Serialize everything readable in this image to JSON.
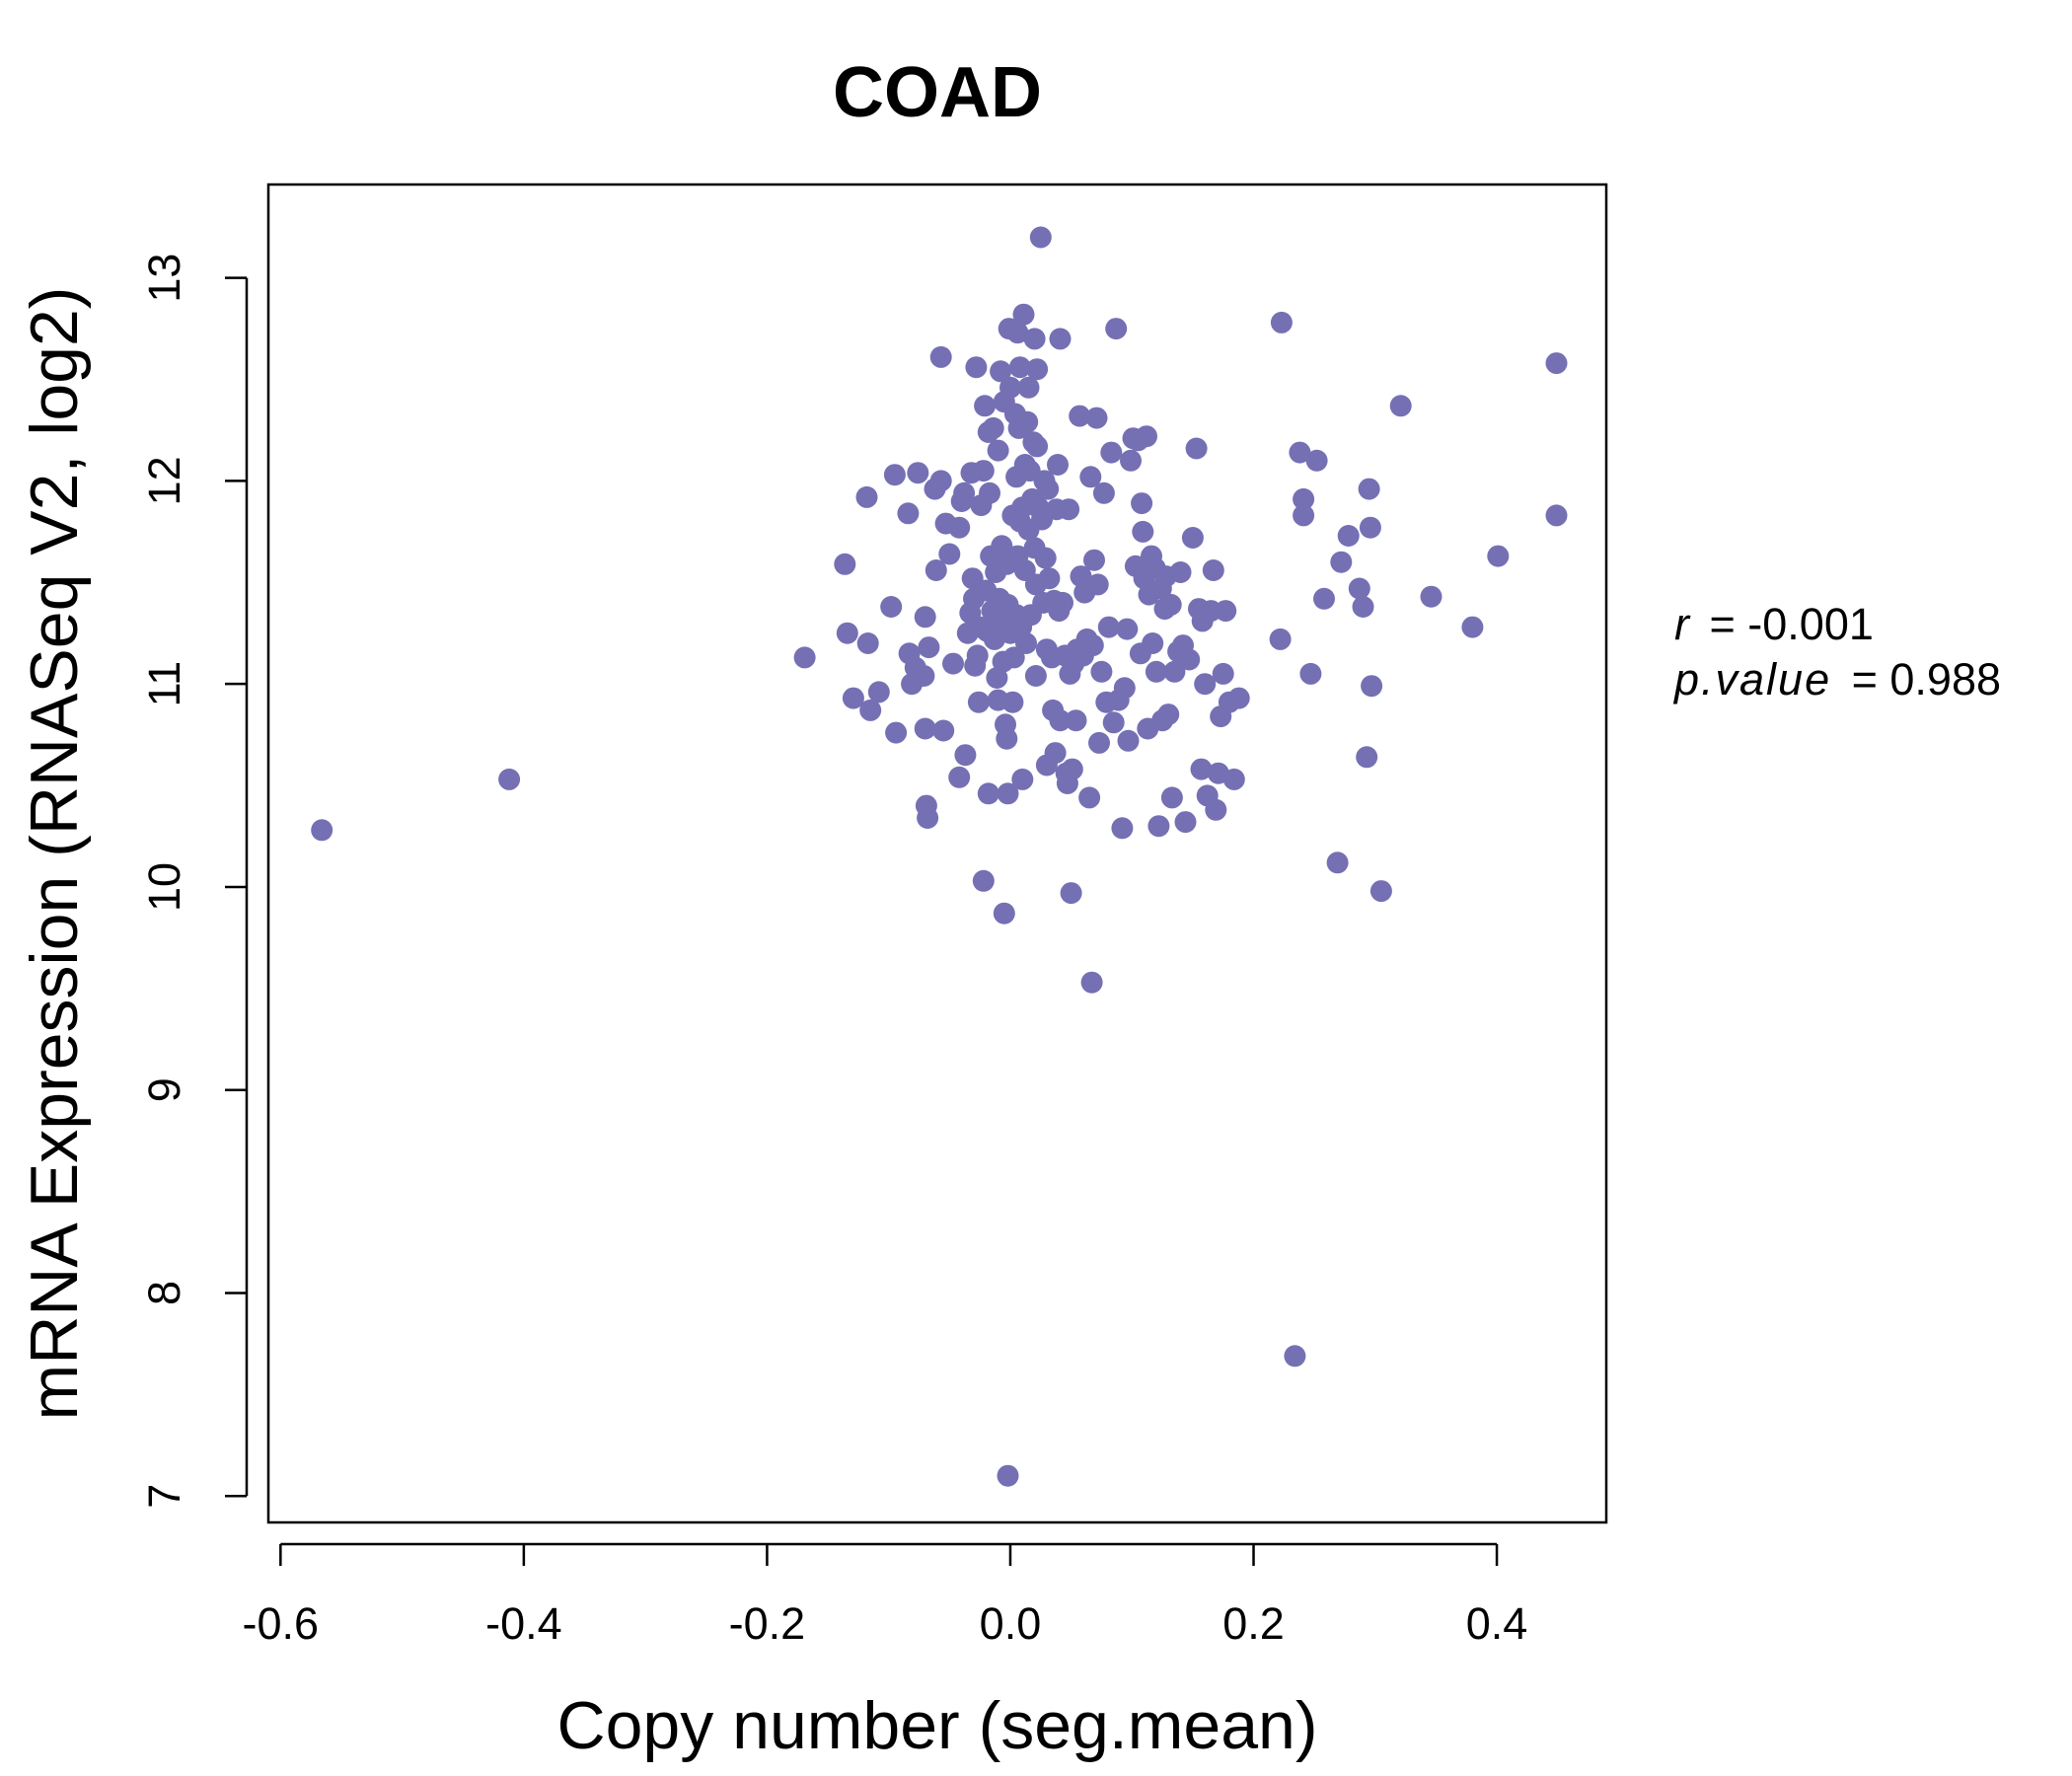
{
  "colors": {
    "accent": "#7570B3",
    "axis": "#000000",
    "background": "#FFFFFF"
  },
  "stats": {
    "r_label": "r",
    "r_value": "= -0.001",
    "p_label": "p.value",
    "p_value": "= 0.988"
  },
  "chart_data": {
    "type": "scatter",
    "title": "COAD",
    "xlabel": "Copy number (seg.mean)",
    "ylabel": "mRNA Expression (RNASeq V2, log2)",
    "xlim": [
      -0.61,
      0.49
    ],
    "ylim": [
      6.87,
      13.46
    ],
    "x_ticks": [
      -0.6,
      -0.4,
      -0.2,
      0.0,
      0.2,
      0.4
    ],
    "x_tick_labels": [
      "-0.6",
      "-0.4",
      "-0.2",
      "0.0",
      "0.2",
      "0.4"
    ],
    "y_ticks": [
      7,
      8,
      9,
      10,
      11,
      12,
      13
    ],
    "y_tick_labels": [
      "7",
      "8",
      "9",
      "10",
      "11",
      "12",
      "13"
    ],
    "grid": false,
    "points": [
      [
        -0.566,
        10.28
      ],
      [
        -0.412,
        10.53
      ],
      [
        -0.169,
        11.13
      ],
      [
        -0.136,
        11.59
      ],
      [
        -0.134,
        11.25
      ],
      [
        -0.129,
        10.93
      ],
      [
        -0.118,
        11.92
      ],
      [
        -0.117,
        11.2
      ],
      [
        -0.115,
        10.87
      ],
      [
        -0.108,
        10.96
      ],
      [
        -0.098,
        11.38
      ],
      [
        -0.095,
        12.03
      ],
      [
        -0.094,
        10.76
      ],
      [
        -0.084,
        11.84
      ],
      [
        -0.083,
        11.15
      ],
      [
        -0.081,
        11.0
      ],
      [
        -0.078,
        11.08
      ],
      [
        -0.076,
        12.04
      ],
      [
        -0.071,
        11.04
      ],
      [
        -0.07,
        11.33
      ],
      [
        -0.07,
        10.78
      ],
      [
        -0.069,
        10.4
      ],
      [
        -0.068,
        10.34
      ],
      [
        -0.067,
        11.18
      ],
      [
        -0.062,
        11.96
      ],
      [
        -0.061,
        11.56
      ],
      [
        -0.057,
        12.61
      ],
      [
        -0.057,
        12.0
      ],
      [
        -0.055,
        10.77
      ],
      [
        -0.053,
        11.79
      ],
      [
        -0.05,
        11.64
      ],
      [
        -0.047,
        11.1
      ],
      [
        -0.042,
        11.77
      ],
      [
        -0.042,
        10.54
      ],
      [
        -0.04,
        11.9
      ],
      [
        -0.038,
        11.94
      ],
      [
        -0.037,
        10.65
      ],
      [
        -0.035,
        11.25
      ],
      [
        -0.033,
        11.35
      ],
      [
        -0.032,
        12.04
      ],
      [
        -0.031,
        11.52
      ],
      [
        -0.03,
        11.42
      ],
      [
        -0.029,
        11.09
      ],
      [
        -0.028,
        12.56
      ],
      [
        -0.027,
        11.14
      ],
      [
        -0.026,
        10.91
      ],
      [
        -0.025,
        11.28
      ],
      [
        -0.024,
        11.88
      ],
      [
        -0.022,
        12.05
      ],
      [
        -0.022,
        10.03
      ],
      [
        -0.021,
        12.37
      ],
      [
        -0.02,
        11.46
      ],
      [
        -0.019,
        11.26
      ],
      [
        -0.018,
        10.46
      ],
      [
        -0.018,
        12.24
      ],
      [
        -0.017,
        11.94
      ],
      [
        -0.016,
        11.63
      ],
      [
        -0.015,
        11.36
      ],
      [
        -0.014,
        12.26
      ],
      [
        -0.013,
        11.22
      ],
      [
        -0.012,
        11.55
      ],
      [
        -0.011,
        11.03
      ],
      [
        -0.01,
        10.92
      ],
      [
        -0.01,
        12.15
      ],
      [
        -0.009,
        11.42
      ],
      [
        -0.008,
        12.54
      ],
      [
        -0.007,
        11.68
      ],
      [
        -0.007,
        11.31
      ],
      [
        -0.006,
        11.11
      ],
      [
        -0.005,
        9.87
      ],
      [
        -0.005,
        12.39
      ],
      [
        -0.004,
        10.8
      ],
      [
        -0.003,
        10.73
      ],
      [
        -0.003,
        11.59
      ],
      [
        -0.002,
        11.39
      ],
      [
        -0.002,
        10.46
      ],
      [
        -0.002,
        7.1
      ],
      [
        -0.001,
        12.75
      ],
      [
        0.0,
        11.25
      ],
      [
        0.0,
        12.46
      ],
      [
        0.002,
        11.83
      ],
      [
        0.002,
        10.91
      ],
      [
        0.003,
        11.13
      ],
      [
        0.004,
        12.33
      ],
      [
        0.005,
        11.34
      ],
      [
        0.005,
        12.02
      ],
      [
        0.006,
        11.63
      ],
      [
        0.006,
        12.73
      ],
      [
        0.007,
        12.26
      ],
      [
        0.008,
        12.56
      ],
      [
        0.008,
        11.8
      ],
      [
        0.009,
        11.28
      ],
      [
        0.01,
        11.87
      ],
      [
        0.01,
        10.53
      ],
      [
        0.011,
        12.82
      ],
      [
        0.012,
        11.56
      ],
      [
        0.012,
        12.08
      ],
      [
        0.013,
        11.2
      ],
      [
        0.014,
        12.29
      ],
      [
        0.015,
        11.76
      ],
      [
        0.015,
        12.46
      ],
      [
        0.016,
        12.05
      ],
      [
        0.017,
        11.34
      ],
      [
        0.018,
        11.91
      ],
      [
        0.019,
        12.19
      ],
      [
        0.02,
        11.67
      ],
      [
        0.02,
        12.7
      ],
      [
        0.021,
        11.49
      ],
      [
        0.021,
        11.04
      ],
      [
        0.022,
        12.55
      ],
      [
        0.022,
        12.17
      ],
      [
        0.023,
        11.87
      ],
      [
        0.025,
        13.2
      ],
      [
        0.026,
        11.81
      ],
      [
        0.027,
        11.4
      ],
      [
        0.028,
        12.0
      ],
      [
        0.029,
        11.62
      ],
      [
        0.03,
        11.17
      ],
      [
        0.03,
        10.6
      ],
      [
        0.031,
        11.96
      ],
      [
        0.032,
        11.52
      ],
      [
        0.034,
        11.13
      ],
      [
        0.035,
        10.87
      ],
      [
        0.036,
        11.41
      ],
      [
        0.037,
        10.66
      ],
      [
        0.038,
        11.86
      ],
      [
        0.039,
        12.08
      ],
      [
        0.04,
        11.36
      ],
      [
        0.041,
        10.82
      ],
      [
        0.041,
        12.7
      ],
      [
        0.043,
        11.4
      ],
      [
        0.045,
        11.14
      ],
      [
        0.046,
        10.56
      ],
      [
        0.047,
        10.51
      ],
      [
        0.048,
        11.86
      ],
      [
        0.049,
        11.05
      ],
      [
        0.05,
        9.97
      ],
      [
        0.051,
        10.58
      ],
      [
        0.052,
        11.1
      ],
      [
        0.054,
        10.82
      ],
      [
        0.055,
        11.17
      ],
      [
        0.057,
        12.32
      ],
      [
        0.058,
        11.53
      ],
      [
        0.06,
        11.14
      ],
      [
        0.061,
        11.45
      ],
      [
        0.063,
        11.22
      ],
      [
        0.065,
        10.44
      ],
      [
        0.066,
        12.02
      ],
      [
        0.067,
        9.53
      ],
      [
        0.068,
        11.19
      ],
      [
        0.069,
        11.61
      ],
      [
        0.071,
        12.31
      ],
      [
        0.072,
        11.49
      ],
      [
        0.073,
        10.71
      ],
      [
        0.075,
        11.06
      ],
      [
        0.077,
        11.94
      ],
      [
        0.079,
        10.91
      ],
      [
        0.081,
        11.28
      ],
      [
        0.083,
        12.14
      ],
      [
        0.085,
        10.81
      ],
      [
        0.087,
        12.75
      ],
      [
        0.089,
        10.92
      ],
      [
        0.092,
        10.29
      ],
      [
        0.094,
        10.98
      ],
      [
        0.096,
        11.27
      ],
      [
        0.097,
        10.72
      ],
      [
        0.099,
        12.1
      ],
      [
        0.101,
        12.21
      ],
      [
        0.103,
        11.58
      ],
      [
        0.105,
        12.2
      ],
      [
        0.107,
        11.15
      ],
      [
        0.108,
        11.89
      ],
      [
        0.109,
        11.75
      ],
      [
        0.11,
        11.52
      ],
      [
        0.112,
        12.22
      ],
      [
        0.113,
        10.78
      ],
      [
        0.114,
        11.44
      ],
      [
        0.116,
        11.63
      ],
      [
        0.117,
        11.2
      ],
      [
        0.119,
        11.57
      ],
      [
        0.12,
        11.06
      ],
      [
        0.122,
        10.3
      ],
      [
        0.124,
        11.47
      ],
      [
        0.125,
        10.82
      ],
      [
        0.127,
        11.37
      ],
      [
        0.128,
        11.53
      ],
      [
        0.13,
        10.85
      ],
      [
        0.132,
        11.39
      ],
      [
        0.133,
        10.44
      ],
      [
        0.135,
        11.06
      ],
      [
        0.138,
        11.16
      ],
      [
        0.14,
        11.55
      ],
      [
        0.142,
        11.19
      ],
      [
        0.144,
        10.32
      ],
      [
        0.147,
        11.12
      ],
      [
        0.15,
        11.72
      ],
      [
        0.153,
        12.16
      ],
      [
        0.155,
        11.37
      ],
      [
        0.157,
        10.58
      ],
      [
        0.158,
        11.31
      ],
      [
        0.16,
        11.0
      ],
      [
        0.162,
        10.45
      ],
      [
        0.165,
        11.36
      ],
      [
        0.167,
        11.56
      ],
      [
        0.169,
        10.38
      ],
      [
        0.171,
        10.56
      ],
      [
        0.173,
        10.84
      ],
      [
        0.175,
        11.05
      ],
      [
        0.177,
        11.36
      ],
      [
        0.18,
        10.91
      ],
      [
        0.184,
        10.53
      ],
      [
        0.188,
        10.93
      ],
      [
        0.222,
        11.22
      ],
      [
        0.223,
        12.78
      ],
      [
        0.234,
        7.69
      ],
      [
        0.238,
        12.14
      ],
      [
        0.241,
        11.91
      ],
      [
        0.241,
        11.83
      ],
      [
        0.247,
        11.05
      ],
      [
        0.252,
        12.1
      ],
      [
        0.258,
        11.42
      ],
      [
        0.269,
        10.12
      ],
      [
        0.272,
        11.6
      ],
      [
        0.278,
        11.73
      ],
      [
        0.287,
        11.47
      ],
      [
        0.29,
        11.38
      ],
      [
        0.293,
        10.64
      ],
      [
        0.295,
        11.96
      ],
      [
        0.296,
        11.77
      ],
      [
        0.297,
        10.99
      ],
      [
        0.305,
        9.98
      ],
      [
        0.321,
        12.37
      ],
      [
        0.346,
        11.43
      ],
      [
        0.38,
        11.28
      ],
      [
        0.401,
        11.63
      ],
      [
        0.449,
        12.58
      ],
      [
        0.449,
        11.83
      ]
    ]
  }
}
